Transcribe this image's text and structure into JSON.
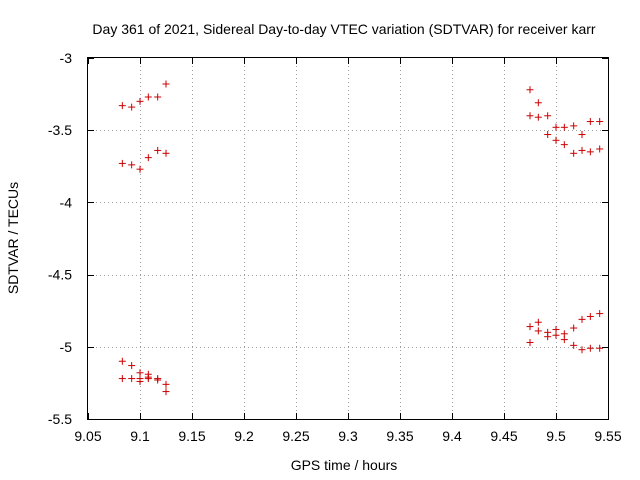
{
  "chart_data": {
    "type": "scatter",
    "title": "Day 361 of 2021, Sidereal Day-to-day VTEC variation (SDTVAR) for receiver karr",
    "xlabel": "GPS time / hours",
    "ylabel": "SDTVAR / TECUs",
    "xlim": [
      9.05,
      9.55
    ],
    "ylim": [
      -5.5,
      -3
    ],
    "xticks": [
      9.05,
      9.1,
      9.15,
      9.2,
      9.25,
      9.3,
      9.35,
      9.4,
      9.45,
      9.5,
      9.55
    ],
    "xtick_labels": [
      "9.05",
      "9.1",
      "9.15",
      "9.2",
      "9.25",
      "9.3",
      "9.35",
      "9.4",
      "9.45",
      "9.5",
      "9.55"
    ],
    "yticks": [
      -3,
      -3.5,
      -4,
      -4.5,
      -5,
      -5.5
    ],
    "ytick_labels": [
      "-3",
      "-3.5",
      "-4",
      "-4.5",
      "-5",
      "-5.5"
    ],
    "grid": true,
    "marker": "+",
    "color": "#cc0000",
    "series": [
      {
        "name": "SDTVAR",
        "points": [
          [
            9.083,
            -3.33
          ],
          [
            9.092,
            -3.34
          ],
          [
            9.1,
            -3.3
          ],
          [
            9.108,
            -3.27
          ],
          [
            9.117,
            -3.27
          ],
          [
            9.125,
            -3.18
          ],
          [
            9.083,
            -3.73
          ],
          [
            9.092,
            -3.74
          ],
          [
            9.1,
            -3.77
          ],
          [
            9.108,
            -3.69
          ],
          [
            9.117,
            -3.64
          ],
          [
            9.125,
            -3.66
          ],
          [
            9.083,
            -5.1
          ],
          [
            9.092,
            -5.13
          ],
          [
            9.1,
            -5.18
          ],
          [
            9.108,
            -5.19
          ],
          [
            9.117,
            -5.22
          ],
          [
            9.125,
            -5.26
          ],
          [
            9.083,
            -5.22
          ],
          [
            9.092,
            -5.22
          ],
          [
            9.1,
            -5.22
          ],
          [
            9.108,
            -5.21
          ],
          [
            9.117,
            -5.23
          ],
          [
            9.125,
            -5.31
          ],
          [
            9.1,
            -5.24
          ],
          [
            9.108,
            -5.22
          ],
          [
            9.475,
            -3.22
          ],
          [
            9.475,
            -3.4
          ],
          [
            9.483,
            -3.31
          ],
          [
            9.483,
            -3.41
          ],
          [
            9.492,
            -3.4
          ],
          [
            9.492,
            -3.53
          ],
          [
            9.5,
            -3.48
          ],
          [
            9.5,
            -3.57
          ],
          [
            9.508,
            -3.48
          ],
          [
            9.508,
            -3.6
          ],
          [
            9.517,
            -3.47
          ],
          [
            9.517,
            -3.66
          ],
          [
            9.525,
            -3.53
          ],
          [
            9.525,
            -3.64
          ],
          [
            9.533,
            -3.44
          ],
          [
            9.533,
            -3.65
          ],
          [
            9.542,
            -3.44
          ],
          [
            9.542,
            -3.63
          ],
          [
            9.475,
            -4.86
          ],
          [
            9.475,
            -4.97
          ],
          [
            9.483,
            -4.83
          ],
          [
            9.483,
            -4.89
          ],
          [
            9.492,
            -4.9
          ],
          [
            9.492,
            -4.93
          ],
          [
            9.5,
            -4.88
          ],
          [
            9.5,
            -4.92
          ],
          [
            9.508,
            -4.91
          ],
          [
            9.508,
            -4.95
          ],
          [
            9.517,
            -4.87
          ],
          [
            9.517,
            -4.99
          ],
          [
            9.525,
            -4.81
          ],
          [
            9.525,
            -5.02
          ],
          [
            9.533,
            -4.79
          ],
          [
            9.533,
            -5.01
          ],
          [
            9.542,
            -4.77
          ],
          [
            9.542,
            -5.01
          ]
        ]
      }
    ]
  }
}
